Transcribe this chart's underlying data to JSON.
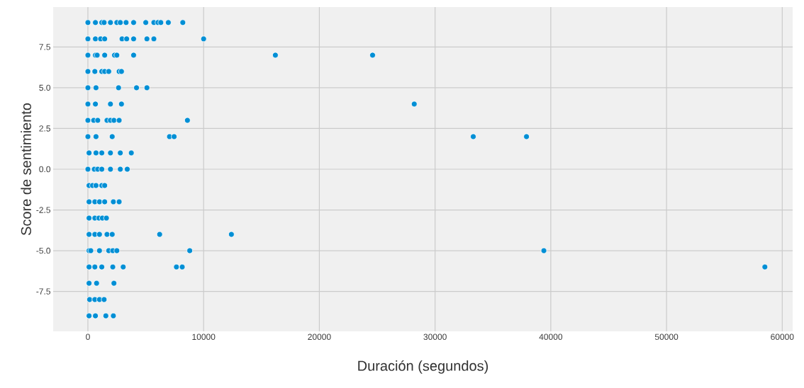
{
  "chart_data": {
    "type": "scatter",
    "xlabel": "Duración (segundos)",
    "ylabel": "Score de sentimiento",
    "x": [
      0,
      650,
      1200,
      1400,
      1950,
      2500,
      2800,
      3300,
      3950,
      5000,
      5700,
      6050,
      6300,
      6950,
      8200,
      0,
      650,
      1100,
      1450,
      2950,
      3350,
      3950,
      5100,
      5700,
      10000,
      0,
      650,
      800,
      1450,
      2300,
      2500,
      3950,
      16200,
      24600,
      0,
      600,
      1200,
      1450,
      1800,
      2700,
      2900,
      0,
      700,
      2650,
      4200,
      5100,
      0,
      650,
      1950,
      2900,
      28200,
      0,
      500,
      850,
      1650,
      1950,
      2250,
      2700,
      8600,
      0,
      700,
      2100,
      7050,
      7450,
      33300,
      37900,
      100,
      700,
      1200,
      1950,
      2800,
      3750,
      0,
      550,
      850,
      1200,
      1950,
      2800,
      3400,
      100,
      400,
      700,
      1200,
      1450,
      100,
      600,
      1000,
      1450,
      2200,
      2700,
      100,
      600,
      950,
      1250,
      1600,
      100,
      600,
      1000,
      1650,
      2100,
      6200,
      12400,
      100,
      250,
      1000,
      1800,
      2150,
      2500,
      8800,
      39400,
      100,
      600,
      1200,
      2150,
      3050,
      7650,
      8150,
      58500,
      100,
      750,
      2250,
      150,
      600,
      1000,
      1400,
      100,
      650,
      1550,
      2200
    ],
    "values": [
      9,
      9,
      9,
      9,
      9,
      9,
      9,
      9,
      9,
      9,
      9,
      9,
      9,
      9,
      9,
      8,
      8,
      8,
      8,
      8,
      8,
      8,
      8,
      8,
      8,
      7,
      7,
      7,
      7,
      7,
      7,
      7,
      7,
      7,
      6,
      6,
      6,
      6,
      6,
      6,
      6,
      5,
      5,
      5,
      5,
      5,
      4,
      4,
      4,
      4,
      4,
      3,
      3,
      3,
      3,
      3,
      3,
      3,
      3,
      2,
      2,
      2,
      2,
      2,
      2,
      2,
      1,
      1,
      1,
      1,
      1,
      1,
      0,
      0,
      0,
      0,
      0,
      0,
      0,
      -1,
      -1,
      -1,
      -1,
      -1,
      -2,
      -2,
      -2,
      -2,
      -2,
      -2,
      -3,
      -3,
      -3,
      -3,
      -3,
      -4,
      -4,
      -4,
      -4,
      -4,
      -4,
      -4,
      -5,
      -5,
      -5,
      -5,
      -5,
      -5,
      -5,
      -5,
      -6,
      -6,
      -6,
      -6,
      -6,
      -6,
      -6,
      -6,
      -7,
      -7,
      -7,
      -8,
      -8,
      -8,
      -8,
      -9,
      -9,
      -9,
      -9
    ],
    "color": "#008fd5",
    "marker": "circle",
    "grid": true,
    "xlim": [
      -3000,
      60900
    ],
    "ylim": [
      -9.95,
      9.95
    ],
    "xticks": [
      0,
      10000,
      20000,
      30000,
      40000,
      50000,
      60000
    ],
    "yticks": [
      -7.5,
      {
        "value": -5,
        "label": "-5.0"
      },
      -2.5,
      {
        "value": 0,
        "label": "0.0"
      },
      2.5,
      {
        "value": 5,
        "label": "5.0"
      },
      7.5
    ]
  }
}
